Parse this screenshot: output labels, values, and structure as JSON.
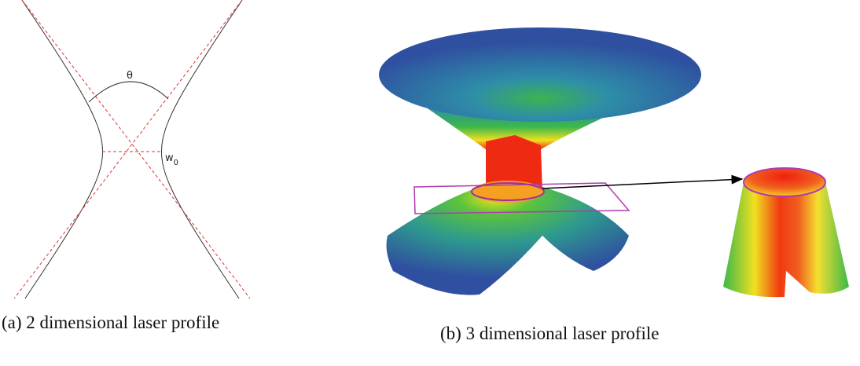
{
  "panels": [
    {
      "annotations": {
        "angle": "θ",
        "waist": "w",
        "waist_subscript": "0"
      },
      "caption": "(a) 2 dimensional laser profile"
    },
    {
      "caption": "(b) 3 dimensional laser profile"
    }
  ]
}
